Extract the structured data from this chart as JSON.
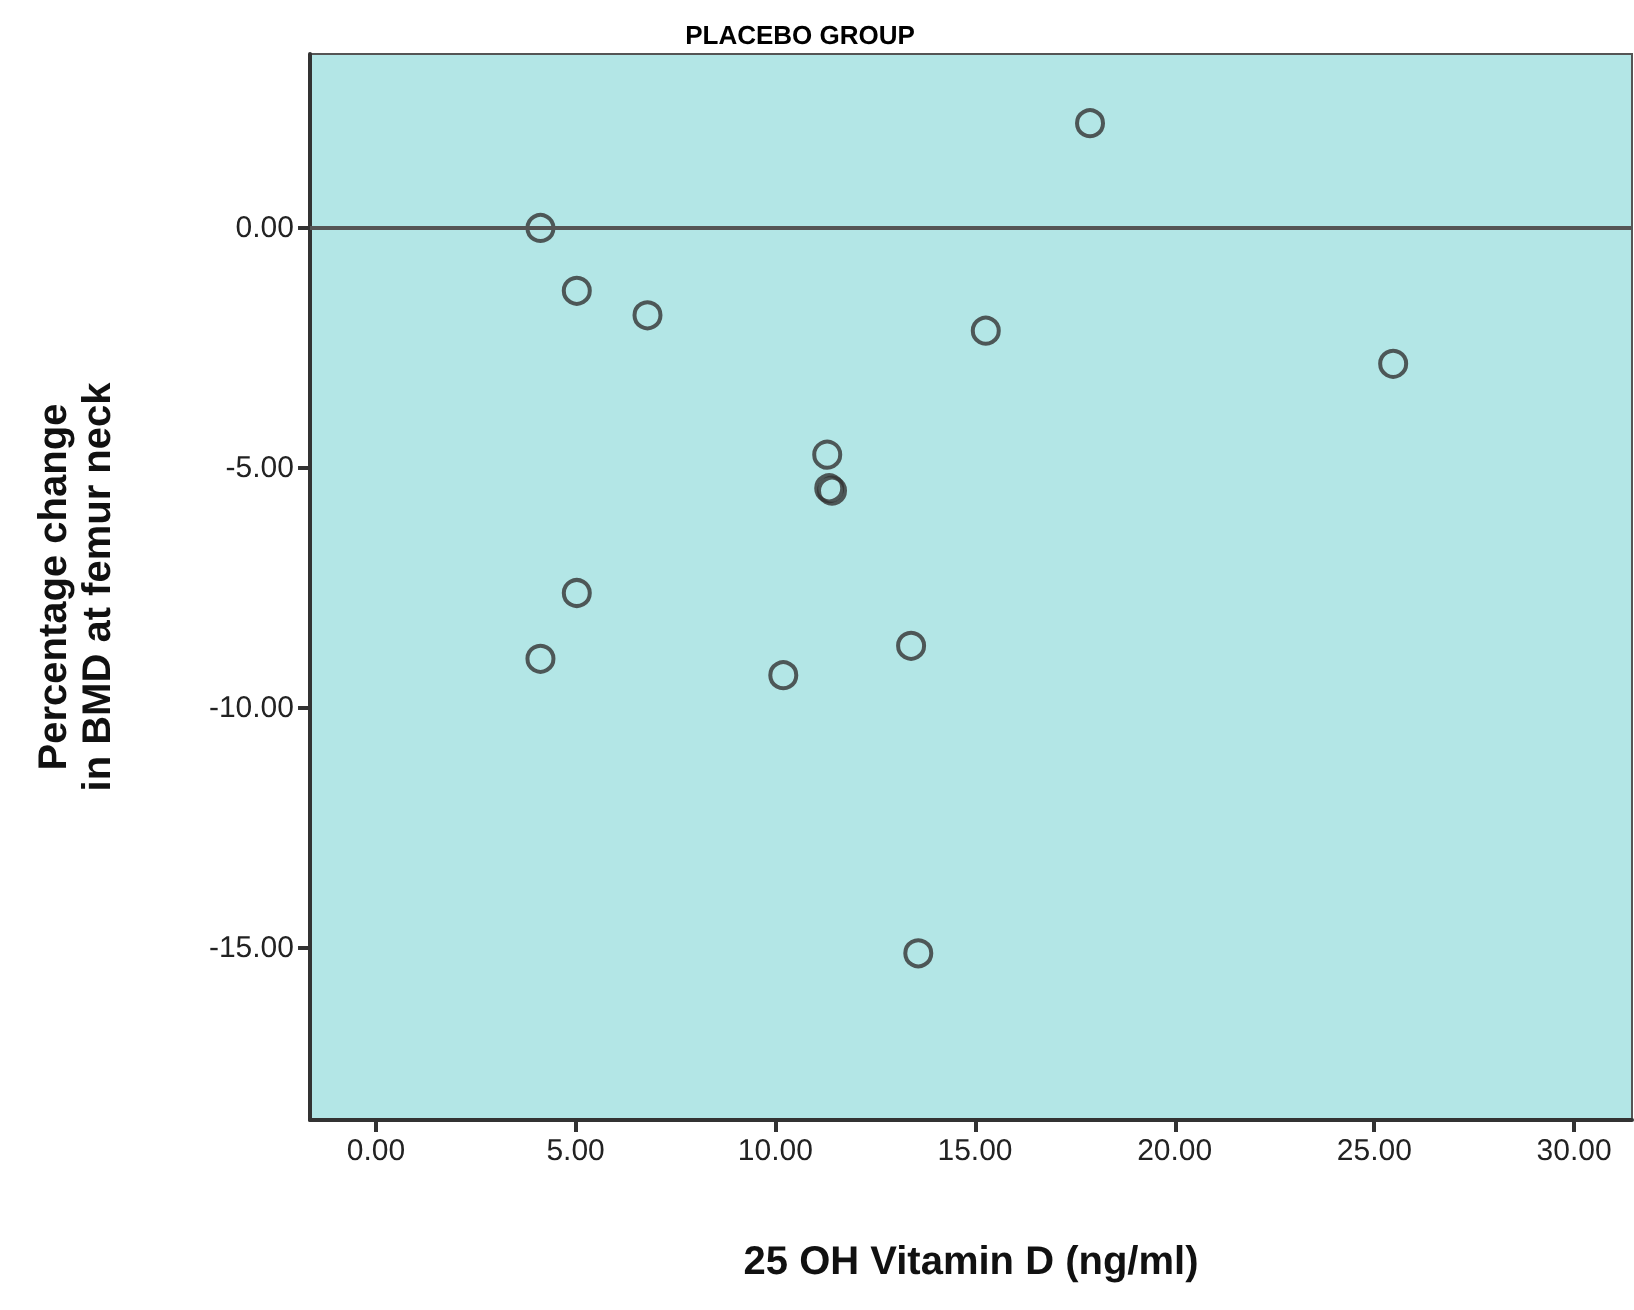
{
  "chart_data": {
    "type": "scatter",
    "title": "PLACEBO GROUP",
    "xlabel": "25 OH Vitamin D (ng/ml)",
    "ylabel": "Percentage change in BMD at femur neck",
    "x": [
      4.12,
      5.03,
      6.8,
      15.27,
      17.88,
      11.3,
      11.35,
      11.42,
      5.03,
      4.12,
      10.2,
      13.4,
      13.58,
      25.47
    ],
    "series": [
      {
        "color": "#333333",
        "values": [
          0.0,
          -1.31,
          -1.82,
          -2.14,
          2.18,
          -4.72,
          -5.42,
          -5.47,
          -7.6,
          -8.97,
          -9.31,
          -8.7,
          -15.1,
          -2.83
        ]
      }
    ],
    "xlim": [
      -1.65,
      31.45
    ],
    "ylim": [
      -18.57,
      3.62
    ],
    "xticks": [
      {
        "value": 0,
        "label": "0.00"
      },
      {
        "value": 5,
        "label": "5.00"
      },
      {
        "value": 10,
        "label": "10.00"
      },
      {
        "value": 15,
        "label": "15.00"
      },
      {
        "value": 20,
        "label": "20.00"
      },
      {
        "value": 25,
        "label": "25.00"
      },
      {
        "value": 30,
        "label": "30.00"
      }
    ],
    "yticks": [
      {
        "value": -15,
        "label": "-15.00"
      },
      {
        "value": -10,
        "label": "-10.00"
      },
      {
        "value": -5,
        "label": "-5.00"
      },
      {
        "value": 0,
        "label": "0.00"
      }
    ],
    "ref_lines": [
      {
        "axis": "y",
        "value": 0,
        "color": "#555555"
      }
    ],
    "marker": "circle",
    "grid": false
  }
}
